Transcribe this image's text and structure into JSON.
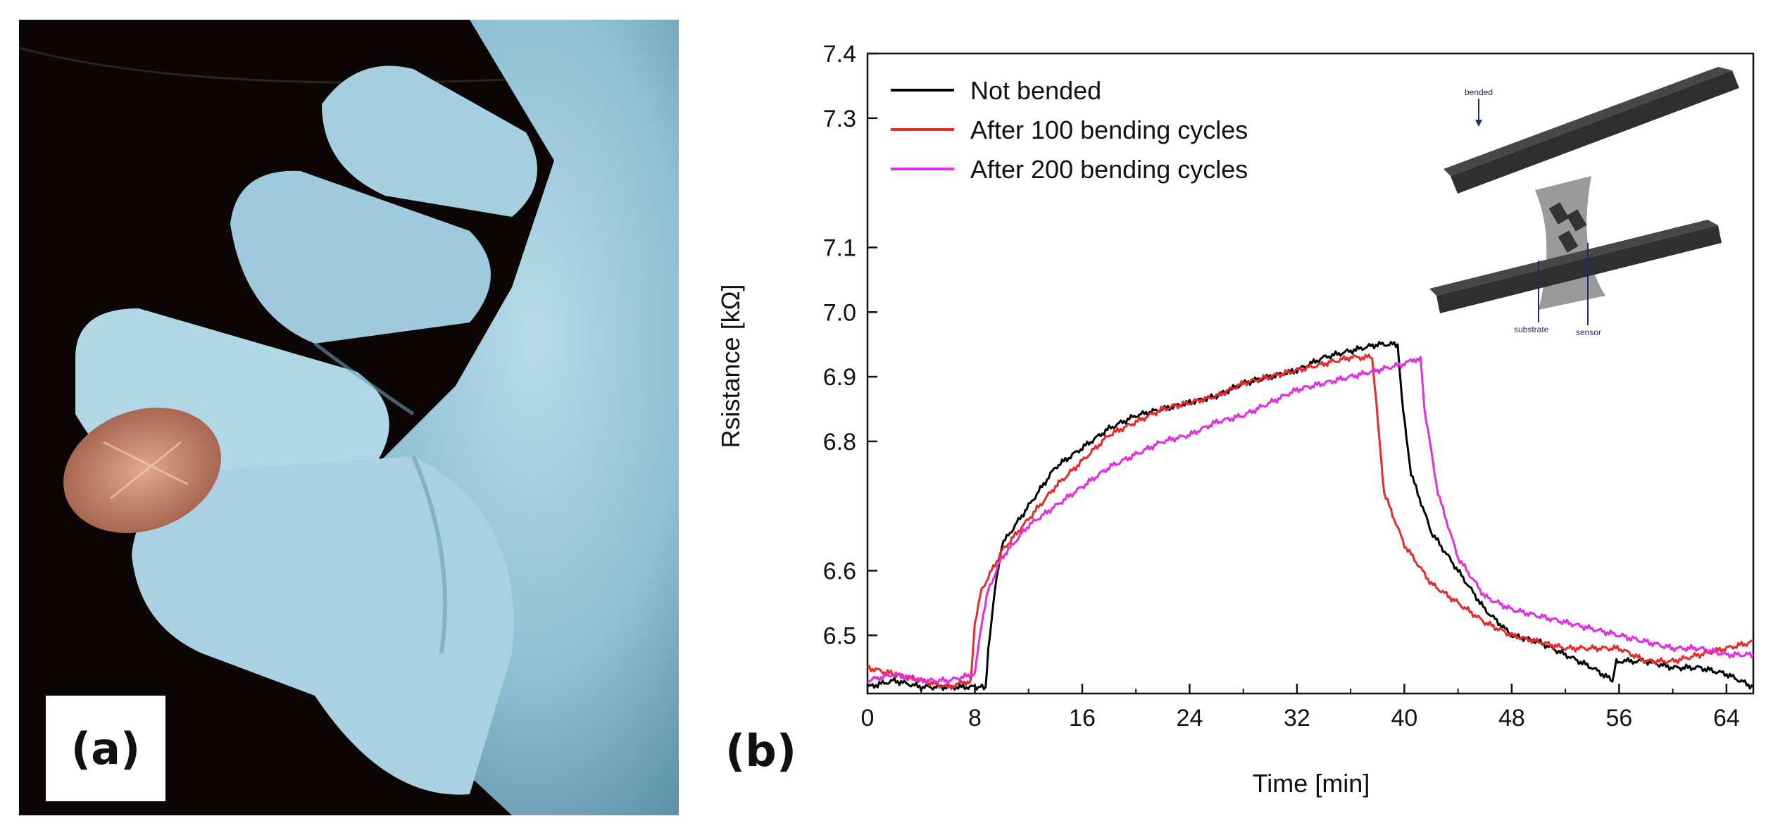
{
  "panel_a": {
    "label": "(a)"
  },
  "panel_b": {
    "label": "(b)"
  },
  "inset": {
    "labels": {
      "bended": "bended",
      "substrate": "substrate",
      "sensor": "sensor"
    }
  },
  "chart_data": {
    "type": "line",
    "title": "",
    "xlabel": "Time [min]",
    "ylabel": "Rsistance [kΩ]",
    "xlim": [
      0,
      66
    ],
    "ylim": [
      6.41,
      7.4
    ],
    "xticks": [
      0,
      8,
      16,
      24,
      32,
      40,
      48,
      56,
      64
    ],
    "yticks": [
      6.5,
      6.6,
      6.8,
      6.9,
      7.0,
      7.1,
      7.3,
      7.4
    ],
    "ytick_labels": [
      "6.5",
      "6.6",
      "6.8",
      "6.9",
      "7.0",
      "7.1",
      "7.3",
      "7.4"
    ],
    "legend_position": "top-left",
    "series": [
      {
        "name": "Not bended",
        "color": "#000000",
        "x": [
          0,
          2,
          4,
          6,
          8,
          8.8,
          9.0,
          9.5,
          10,
          12,
          14,
          16,
          18,
          20,
          22,
          24,
          26,
          28,
          30,
          32,
          34,
          36,
          38,
          39.5,
          39.8,
          40.5,
          42,
          44,
          46,
          48,
          50,
          52,
          54,
          55.5,
          55.8,
          58,
          60,
          62,
          64,
          66
        ],
        "y": [
          6.42,
          6.43,
          6.42,
          6.42,
          6.42,
          6.42,
          6.48,
          6.57,
          6.64,
          6.7,
          6.76,
          6.79,
          6.82,
          6.84,
          6.85,
          6.86,
          6.87,
          6.89,
          6.9,
          6.91,
          6.93,
          6.94,
          6.95,
          6.95,
          6.87,
          6.75,
          6.66,
          6.6,
          6.54,
          6.5,
          6.49,
          6.47,
          6.45,
          6.43,
          6.46,
          6.46,
          6.45,
          6.45,
          6.44,
          6.42
        ]
      },
      {
        "name": "After 100 bending cycles",
        "color": "#e52b2b",
        "x": [
          0,
          2,
          4,
          6,
          7.7,
          8.0,
          8.5,
          10,
          12,
          14,
          16,
          18,
          20,
          22,
          24,
          26,
          28,
          30,
          32,
          34,
          36,
          37.6,
          37.9,
          38.5,
          40,
          42,
          44,
          46,
          48,
          50,
          52,
          54,
          56,
          58,
          60,
          62,
          64,
          66
        ],
        "y": [
          6.45,
          6.44,
          6.43,
          6.42,
          6.43,
          6.52,
          6.57,
          6.63,
          6.68,
          6.73,
          6.77,
          6.81,
          6.83,
          6.85,
          6.86,
          6.87,
          6.89,
          6.9,
          6.91,
          6.92,
          6.93,
          6.93,
          6.86,
          6.72,
          6.64,
          6.58,
          6.55,
          6.52,
          6.5,
          6.49,
          6.48,
          6.48,
          6.48,
          6.46,
          6.46,
          6.47,
          6.48,
          6.49
        ]
      },
      {
        "name": "After 200 bending cycles",
        "color": "#e12ee1",
        "x": [
          0,
          2,
          4,
          6,
          8,
          8.5,
          9.0,
          10,
          12,
          14,
          16,
          18,
          20,
          22,
          24,
          26,
          28,
          30,
          32,
          34,
          36,
          38,
          40,
          41.2,
          41.5,
          42.5,
          44,
          46,
          48,
          50,
          52,
          54,
          56,
          58,
          60,
          62,
          64,
          66
        ],
        "y": [
          6.43,
          6.44,
          6.43,
          6.43,
          6.44,
          6.52,
          6.57,
          6.62,
          6.67,
          6.7,
          6.73,
          6.76,
          6.78,
          6.8,
          6.81,
          6.83,
          6.84,
          6.86,
          6.88,
          6.89,
          6.9,
          6.91,
          6.92,
          6.93,
          6.85,
          6.72,
          6.62,
          6.56,
          6.54,
          6.53,
          6.52,
          6.51,
          6.5,
          6.49,
          6.48,
          6.48,
          6.47,
          6.47
        ]
      }
    ]
  }
}
